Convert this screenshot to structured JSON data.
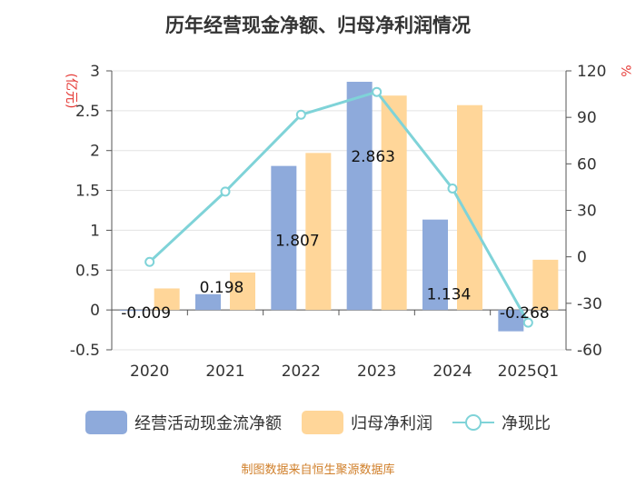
{
  "chart_data": {
    "type": "bar+line",
    "title": "历年经营现金净额、归母净利润情况",
    "categories": [
      "2020",
      "2021",
      "2022",
      "2023",
      "2024",
      "2025Q1"
    ],
    "series": [
      {
        "name": "经营活动现金流净额",
        "axis": "left",
        "kind": "bar",
        "values": [
          -0.009,
          0.198,
          1.807,
          2.863,
          1.134,
          -0.268
        ],
        "data_labels": [
          "-0.009",
          "0.198",
          "1.807",
          "2.863",
          "1.134",
          "-0.268"
        ]
      },
      {
        "name": "归母净利润",
        "axis": "left",
        "kind": "bar",
        "values": [
          0.27,
          0.47,
          1.97,
          2.69,
          2.57,
          0.63
        ]
      },
      {
        "name": "净现比",
        "axis": "right",
        "kind": "line",
        "values": [
          -3.3,
          42.1,
          91.7,
          106.4,
          44.1,
          -42.5
        ]
      }
    ],
    "left_axis": {
      "label": "(亿元)",
      "min": -0.5,
      "max": 3,
      "ticks": [
        -0.5,
        0,
        0.5,
        1,
        1.5,
        2,
        2.5,
        3
      ],
      "tick_labels": [
        "-0.5",
        "0",
        "0.5",
        "1",
        "1.5",
        "2",
        "2.5",
        "3"
      ]
    },
    "right_axis": {
      "label": "%",
      "min": -60,
      "max": 120,
      "ticks": [
        -60,
        -30,
        0,
        30,
        60,
        90,
        120
      ],
      "tick_labels": [
        "-60",
        "-30",
        "0",
        "30",
        "60",
        "90",
        "120"
      ]
    },
    "grid": true,
    "legend_position": "bottom",
    "colors": {
      "bar1": "#8eaadb",
      "bar2": "#ffd699",
      "line": "#7fd3d8",
      "axis_label": "#e53935",
      "source": "#d07f2a"
    }
  },
  "legend": {
    "item1": "经营活动现金流净额",
    "item2": "归母净利润",
    "item3": "净现比"
  },
  "source": "制图数据来自恒生聚源数据库"
}
